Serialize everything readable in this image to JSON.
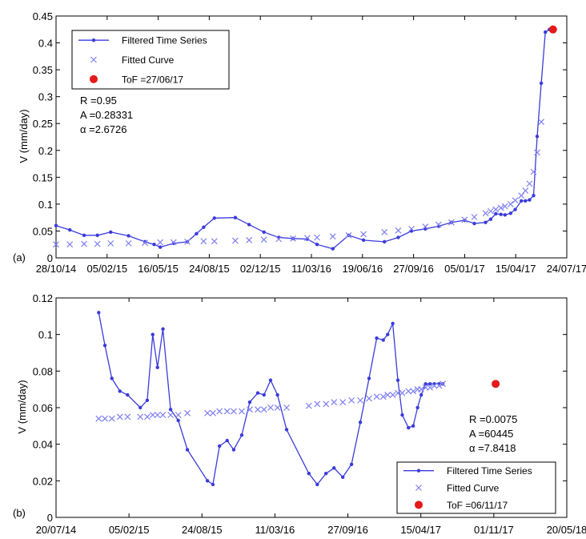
{
  "chart_data": [
    {
      "type": "line",
      "panel_label": "(a)",
      "ylabel": "V (mm/day)",
      "xlabel": "",
      "xlim": [
        "2014-10-28",
        "2017-07-24"
      ],
      "ylim": [
        0,
        0.45
      ],
      "x_tick_labels": [
        "28/10/14",
        "05/02/15",
        "16/05/15",
        "24/08/15",
        "02/12/15",
        "11/03/16",
        "19/06/16",
        "27/09/16",
        "05/01/17",
        "15/04/17",
        "24/07/17"
      ],
      "y_tick_labels": [
        "0",
        "0.05",
        "0.1",
        "0.15",
        "0.2",
        "0.25",
        "0.3",
        "0.35",
        "0.4",
        "0.45"
      ],
      "legend": {
        "placement": "top-left",
        "entries": [
          "Filtered Time Series",
          "Fitted Curve",
          "ToF =27/06/17"
        ]
      },
      "annotations": [
        "R =0.95",
        "A =0.28331",
        "α =2.6726"
      ],
      "colors": {
        "series": "#3b3bdb",
        "fitted": "#7f7ff0",
        "tof": "#e41a1c"
      },
      "series": [
        {
          "name": "Filtered Time Series",
          "marker": "dot-line",
          "x": [
            "2014-10-28",
            "2014-11-24",
            "2014-12-22",
            "2015-01-17",
            "2015-02-12",
            "2015-03-19",
            "2015-04-20",
            "2015-05-08",
            "2015-05-20",
            "2015-06-15",
            "2015-07-12",
            "2015-07-30",
            "2015-08-13",
            "2015-09-03",
            "2015-10-14",
            "2015-11-10",
            "2015-12-09",
            "2016-01-07",
            "2016-02-04",
            "2016-03-03",
            "2016-03-22",
            "2016-04-22",
            "2016-05-23",
            "2016-06-21",
            "2016-08-01",
            "2016-08-28",
            "2016-09-23",
            "2016-10-20",
            "2016-11-15",
            "2016-12-10",
            "2017-01-05",
            "2017-01-24",
            "2017-02-15",
            "2017-02-25",
            "2017-03-07",
            "2017-03-17",
            "2017-03-25",
            "2017-04-05",
            "2017-04-14",
            "2017-04-26",
            "2017-05-04",
            "2017-05-12",
            "2017-05-20",
            "2017-05-27",
            "2017-06-04",
            "2017-06-12",
            "2017-06-20",
            "2017-06-25"
          ],
          "y": [
            0.06,
            0.052,
            0.042,
            0.042,
            0.048,
            0.041,
            0.03,
            0.025,
            0.02,
            0.027,
            0.03,
            0.045,
            0.057,
            0.074,
            0.075,
            0.062,
            0.048,
            0.038,
            0.036,
            0.035,
            0.025,
            0.017,
            0.042,
            0.033,
            0.03,
            0.038,
            0.05,
            0.054,
            0.059,
            0.066,
            0.07,
            0.064,
            0.066,
            0.072,
            0.082,
            0.081,
            0.08,
            0.083,
            0.09,
            0.106,
            0.106,
            0.108,
            0.116,
            0.226,
            0.325,
            0.42,
            0.425,
            0.425
          ]
        },
        {
          "name": "Fitted Curve",
          "marker": "x",
          "x": [
            "2014-10-28",
            "2014-11-24",
            "2014-12-22",
            "2015-01-17",
            "2015-02-12",
            "2015-03-19",
            "2015-04-20",
            "2015-05-20",
            "2015-06-15",
            "2015-07-12",
            "2015-08-13",
            "2015-09-03",
            "2015-10-14",
            "2015-11-10",
            "2015-12-09",
            "2016-01-07",
            "2016-02-04",
            "2016-03-03",
            "2016-03-22",
            "2016-04-22",
            "2016-05-23",
            "2016-06-21",
            "2016-08-01",
            "2016-08-28",
            "2016-09-23",
            "2016-10-20",
            "2016-11-15",
            "2016-12-10",
            "2017-01-05",
            "2017-01-24",
            "2017-02-15",
            "2017-02-25",
            "2017-03-07",
            "2017-03-17",
            "2017-03-25",
            "2017-04-05",
            "2017-04-14",
            "2017-04-26",
            "2017-05-04",
            "2017-05-12",
            "2017-05-20",
            "2017-05-27",
            "2017-06-04"
          ],
          "y": [
            0.025,
            0.025,
            0.026,
            0.026,
            0.027,
            0.027,
            0.028,
            0.029,
            0.029,
            0.03,
            0.031,
            0.031,
            0.032,
            0.033,
            0.034,
            0.035,
            0.036,
            0.037,
            0.038,
            0.04,
            0.042,
            0.044,
            0.048,
            0.051,
            0.054,
            0.058,
            0.062,
            0.066,
            0.071,
            0.076,
            0.083,
            0.087,
            0.09,
            0.093,
            0.096,
            0.1,
            0.107,
            0.116,
            0.125,
            0.138,
            0.16,
            0.196,
            0.253
          ]
        }
      ],
      "tof_point": {
        "x": "2017-06-27",
        "y": 0.425
      }
    },
    {
      "type": "line",
      "panel_label": "(b)",
      "ylabel": "V (mm/day)",
      "xlabel": "",
      "xlim": [
        "2014-07-20",
        "2018-05-20"
      ],
      "ylim": [
        0,
        0.12
      ],
      "x_tick_labels": [
        "20/07/14",
        "05/02/15",
        "24/08/15",
        "11/03/16",
        "27/09/16",
        "15/04/17",
        "01/11/17",
        "20/05/18"
      ],
      "y_tick_labels": [
        "0",
        "0.02",
        "0.04",
        "0.06",
        "0.08",
        "0.1",
        "0.12"
      ],
      "legend": {
        "placement": "bottom-right",
        "entries": [
          "Filtered Time Series",
          "Fitted Curve",
          "ToF =06/11/17"
        ]
      },
      "annotations": [
        "R =0.0075",
        "A =60445",
        "α =7.8418"
      ],
      "colors": {
        "series": "#3b3bdb",
        "fitted": "#7f7ff0",
        "tof": "#e41a1c"
      },
      "series": [
        {
          "name": "Filtered Time Series",
          "marker": "dot-line",
          "x": [
            "2014-11-14",
            "2014-12-01",
            "2014-12-20",
            "2015-01-11",
            "2015-02-01",
            "2015-03-08",
            "2015-03-27",
            "2015-04-11",
            "2015-04-24",
            "2015-05-09",
            "2015-05-30",
            "2015-06-20",
            "2015-07-15",
            "2015-09-08",
            "2015-09-23",
            "2015-10-11",
            "2015-11-01",
            "2015-11-19",
            "2015-12-11",
            "2016-01-02",
            "2016-01-24",
            "2016-02-10",
            "2016-02-28",
            "2016-03-18",
            "2016-04-12",
            "2016-06-12",
            "2016-07-05",
            "2016-07-29",
            "2016-08-20",
            "2016-09-13",
            "2016-10-07",
            "2016-10-31",
            "2016-11-24",
            "2016-12-15",
            "2017-01-02",
            "2017-01-14",
            "2017-01-28",
            "2017-02-11",
            "2017-02-23",
            "2017-03-12",
            "2017-03-25",
            "2017-04-06",
            "2017-04-16",
            "2017-04-28",
            "2017-05-10",
            "2017-05-22",
            "2017-06-04",
            "2017-06-14"
          ],
          "y": [
            0.112,
            0.094,
            0.076,
            0.069,
            0.067,
            0.06,
            0.064,
            0.1,
            0.082,
            0.103,
            0.059,
            0.053,
            0.037,
            0.02,
            0.018,
            0.039,
            0.042,
            0.037,
            0.045,
            0.063,
            0.068,
            0.067,
            0.075,
            0.067,
            0.048,
            0.024,
            0.018,
            0.024,
            0.027,
            0.022,
            0.029,
            0.052,
            0.076,
            0.098,
            0.097,
            0.1,
            0.106,
            0.075,
            0.056,
            0.049,
            0.05,
            0.06,
            0.067,
            0.073,
            0.073,
            0.073,
            0.073,
            0.073
          ]
        },
        {
          "name": "Fitted Curve",
          "marker": "x",
          "x": [
            "2014-11-14",
            "2014-12-01",
            "2014-12-20",
            "2015-01-11",
            "2015-02-01",
            "2015-03-08",
            "2015-03-27",
            "2015-04-11",
            "2015-04-24",
            "2015-05-09",
            "2015-05-30",
            "2015-06-20",
            "2015-07-15",
            "2015-09-08",
            "2015-09-23",
            "2015-10-11",
            "2015-11-01",
            "2015-11-19",
            "2015-12-11",
            "2016-01-02",
            "2016-01-24",
            "2016-02-10",
            "2016-02-28",
            "2016-03-18",
            "2016-04-12",
            "2016-06-12",
            "2016-07-05",
            "2016-07-29",
            "2016-08-20",
            "2016-09-13",
            "2016-10-07",
            "2016-10-31",
            "2016-11-24",
            "2016-12-15",
            "2017-01-02",
            "2017-01-14",
            "2017-01-28",
            "2017-02-11",
            "2017-02-23",
            "2017-03-12",
            "2017-03-25",
            "2017-04-06",
            "2017-04-16",
            "2017-04-28",
            "2017-05-10",
            "2017-05-22",
            "2017-06-04",
            "2017-06-14"
          ],
          "y": [
            0.054,
            0.054,
            0.054,
            0.055,
            0.055,
            0.055,
            0.055,
            0.056,
            0.056,
            0.056,
            0.056,
            0.056,
            0.057,
            0.057,
            0.057,
            0.058,
            0.058,
            0.058,
            0.058,
            0.059,
            0.059,
            0.059,
            0.06,
            0.06,
            0.06,
            0.061,
            0.062,
            0.062,
            0.063,
            0.063,
            0.064,
            0.064,
            0.065,
            0.066,
            0.066,
            0.067,
            0.067,
            0.068,
            0.068,
            0.069,
            0.069,
            0.07,
            0.07,
            0.071,
            0.071,
            0.072,
            0.072,
            0.073
          ]
        }
      ],
      "tof_point": {
        "x": "2017-11-06",
        "y": 0.073
      }
    }
  ]
}
